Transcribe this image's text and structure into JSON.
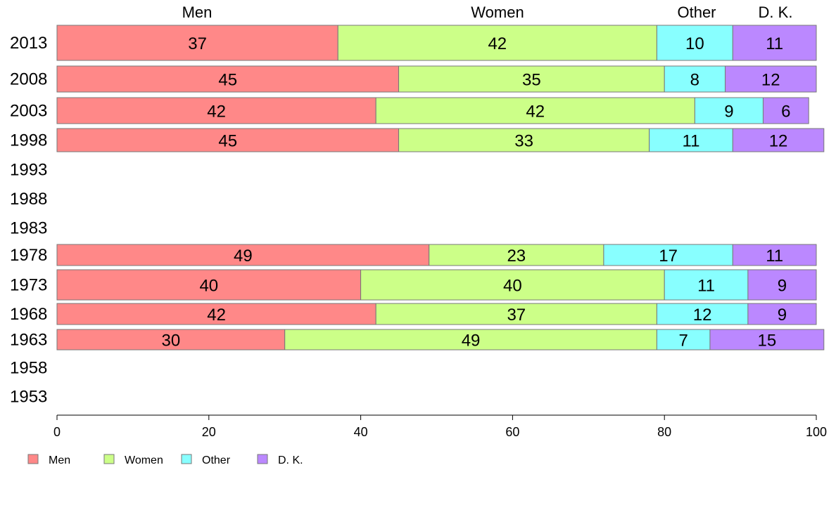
{
  "chart_data": {
    "type": "bar",
    "orientation": "horizontal",
    "stacked": true,
    "percent_stacked": true,
    "categories": [
      "2013",
      "2008",
      "2003",
      "1998",
      "1993",
      "1988",
      "1983",
      "1978",
      "1973",
      "1968",
      "1963",
      "1958",
      "1953"
    ],
    "series": [
      {
        "name": "Men",
        "color": "#ff8888",
        "values": [
          37,
          45,
          42,
          45,
          null,
          null,
          null,
          49,
          40,
          42,
          30,
          null,
          null
        ]
      },
      {
        "name": "Women",
        "color": "#ccff88",
        "values": [
          42,
          35,
          42,
          33,
          null,
          null,
          null,
          23,
          40,
          37,
          49,
          null,
          null
        ]
      },
      {
        "name": "Other",
        "color": "#88ffff",
        "values": [
          10,
          8,
          9,
          11,
          null,
          null,
          null,
          17,
          11,
          12,
          7,
          null,
          null
        ]
      },
      {
        "name": "D. K.",
        "color": "#bb88ff",
        "values": [
          11,
          12,
          6,
          12,
          null,
          null,
          null,
          11,
          9,
          9,
          15,
          null,
          null
        ]
      }
    ],
    "column_headers": [
      "Men",
      "Women",
      "Other",
      "D. K."
    ],
    "xlim": [
      0,
      100
    ],
    "xticks": [
      0,
      20,
      40,
      60,
      80,
      100
    ],
    "legend_position": "bottom-left",
    "grid": false
  }
}
